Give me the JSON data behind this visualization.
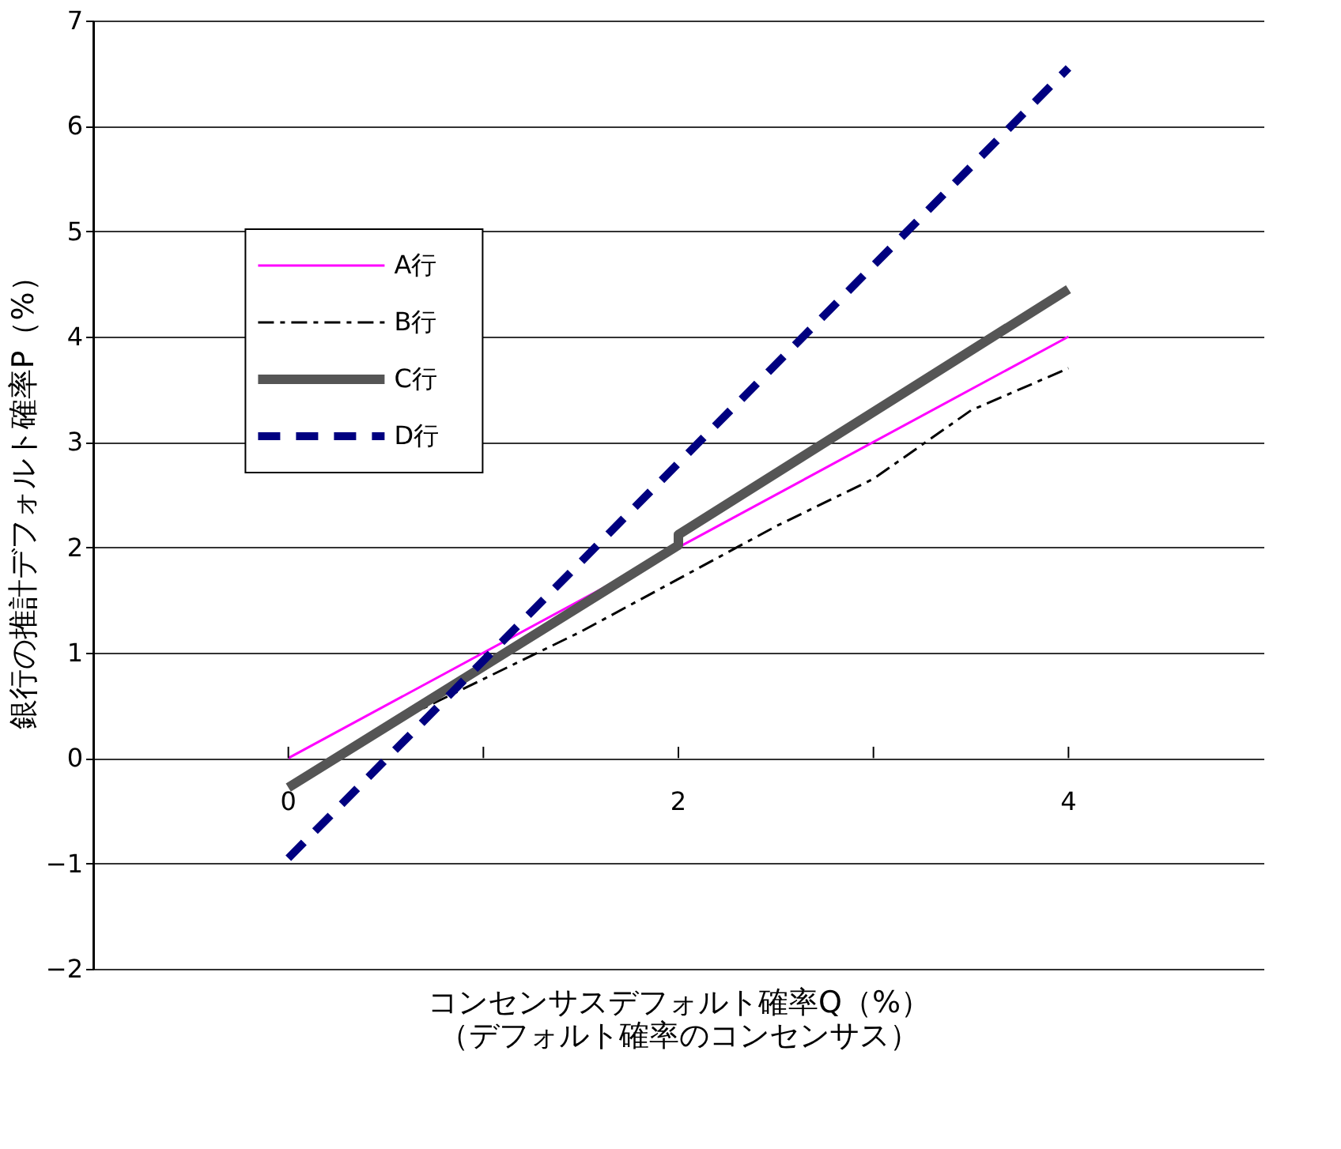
{
  "chart_data": {
    "type": "line",
    "xlabel": "コンセンサスデフォルト確率Q（%）（デフォルト確率のコンセンサス）",
    "ylabel": "銀行の推計デフォルト確率P（%）",
    "xlim": [
      -1,
      5
    ],
    "xticks": [
      0,
      {
        "value": 1,
        "label": null
      },
      2,
      {
        "value": 3,
        "label": null
      },
      4
    ],
    "ylim": [
      -2,
      7
    ],
    "yticks": [
      -2,
      -1,
      0,
      1,
      2,
      3,
      4,
      5,
      6,
      7
    ],
    "grid": "y",
    "legend": "top left",
    "marker": "none",
    "series": [
      {
        "name": "A行",
        "color": "#ff00ff",
        "line_style": "solid",
        "x": [
          0,
          4
        ],
        "values": [
          0,
          4
        ]
      },
      {
        "name": "B行",
        "color": "#000000",
        "line_style": "dashed",
        "x": [
          0,
          0.5,
          1,
          1.5,
          2,
          2.5,
          3,
          3.5,
          4
        ],
        "values": [
          -0.25,
          0.3,
          0.75,
          1.2,
          1.7,
          2.2,
          2.65,
          3.3,
          3.7
        ]
      },
      {
        "name": "C行",
        "color": "#555555",
        "line_style": "solid",
        "x": [
          0,
          2,
          2,
          4
        ],
        "values": [
          -0.28,
          2.02,
          2.12,
          4.45
        ]
      },
      {
        "name": "D行",
        "color": "#000080",
        "line_style": "dashed",
        "x": [
          0,
          2,
          4
        ],
        "values": [
          -0.95,
          2.8,
          6.55
        ]
      }
    ]
  }
}
